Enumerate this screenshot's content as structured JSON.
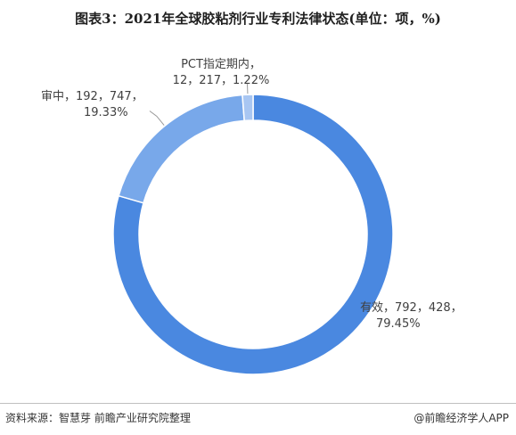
{
  "title": "图表3：2021年全球胶粘剂行业专利法律状态(单位：项，%)",
  "footer": {
    "source": "资料来源：智慧芽 前瞻产业研究院整理",
    "brand": "@前瞻经济学人APP"
  },
  "colors": {
    "valid": "#4a88e0",
    "review": "#78a8ea",
    "pct": "#a8c6f2",
    "leader": "#999999"
  },
  "chart_data": {
    "type": "pie",
    "donut": true,
    "title": "图表3：2021年全球胶粘剂行业专利法律状态(单位：项，%)",
    "slices": [
      {
        "name": "有效",
        "value": 792428,
        "percent": 79.45,
        "label_line1": "有效，792，428，",
        "label_line2": "79.45%"
      },
      {
        "name": "审中",
        "value": 192747,
        "percent": 19.33,
        "label_line1": "审中，192，747，",
        "label_line2": "19.33%"
      },
      {
        "name": "PCT指定期内",
        "value": 12217,
        "percent": 1.22,
        "label_line1": "PCT指定期内，",
        "label_line2": "12，217，1.22%"
      }
    ]
  }
}
